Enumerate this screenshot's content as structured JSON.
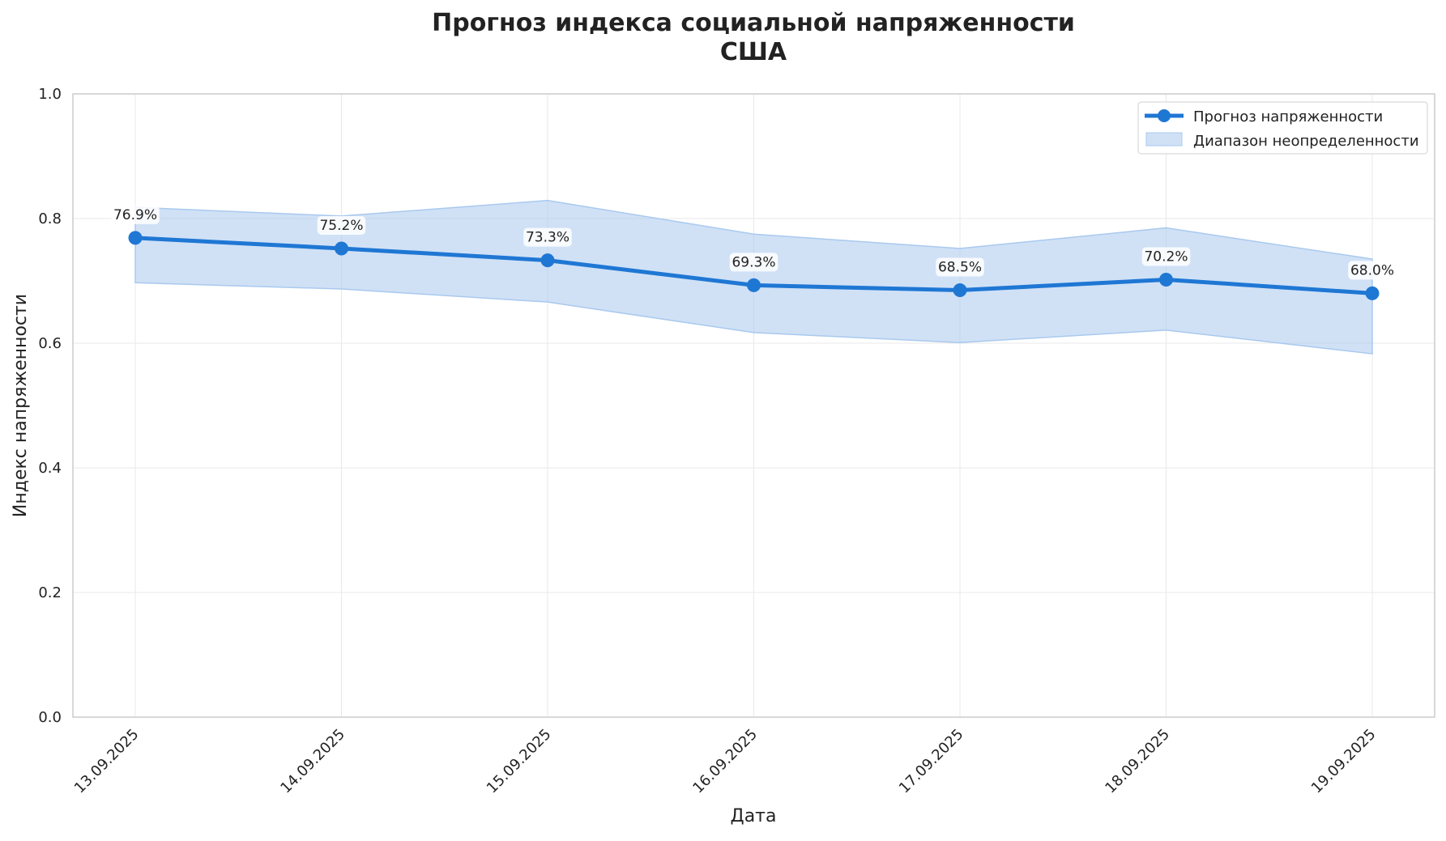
{
  "chart_data": {
    "type": "line",
    "title_line1": "Прогноз индекса социальной напряженности",
    "title_line2": "США",
    "xlabel": "Дата",
    "ylabel": "Индекс напряженности",
    "ylim": [
      0,
      1
    ],
    "yticks": [
      "0.0",
      "0.2",
      "0.4",
      "0.6",
      "0.8",
      "1.0"
    ],
    "y_tick_values": [
      0,
      0.2,
      0.4,
      0.6,
      0.8,
      1.0
    ],
    "grid": true,
    "legend_position": "top-right",
    "categories": [
      "13.09.2025",
      "14.09.2025",
      "15.09.2025",
      "16.09.2025",
      "17.09.2025",
      "18.09.2025",
      "19.09.2025"
    ],
    "series": [
      {
        "name": "Прогноз напряженности",
        "values": [
          0.769,
          0.752,
          0.733,
          0.693,
          0.685,
          0.702,
          0.68
        ],
        "labels": [
          "76.9%",
          "75.2%",
          "73.3%",
          "69.3%",
          "68.5%",
          "70.2%",
          "68.0%"
        ],
        "color": "#1f77d4"
      }
    ],
    "band": {
      "name": "Диапазон неопределенности",
      "upper": [
        0.818,
        0.804,
        0.829,
        0.775,
        0.752,
        0.785,
        0.735
      ],
      "lower": [
        0.697,
        0.687,
        0.666,
        0.617,
        0.601,
        0.621,
        0.583
      ],
      "color": "#a9c9ee"
    }
  }
}
